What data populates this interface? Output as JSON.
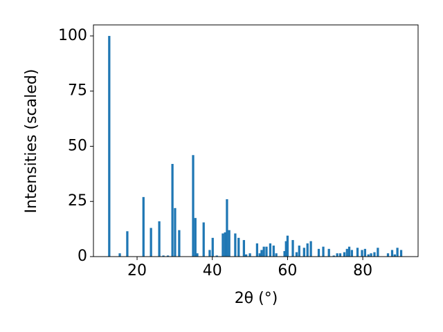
{
  "chart_data": {
    "type": "bar",
    "x_label": "2θ (°)",
    "y_label": "Intensities (scaled)",
    "color": "#1f77b4",
    "x": [
      12.6,
      15.4,
      17.4,
      21.7,
      23.7,
      25.9,
      27.0,
      28.2,
      29.4,
      30.1,
      31.2,
      34.9,
      35.5,
      36.0,
      37.7,
      39.3,
      40.1,
      41.2,
      42.8,
      43.4,
      43.9,
      44.5,
      46.1,
      47.0,
      48.4,
      49.0,
      50.0,
      51.9,
      52.6,
      53.1,
      53.7,
      54.4,
      55.4,
      56.3,
      57.0,
      59.2,
      59.6,
      60.0,
      61.4,
      62.4,
      63.1,
      64.4,
      65.3,
      66.2,
      68.3,
      69.5,
      71.0,
      72.3,
      73.2,
      74.0,
      75.1,
      75.8,
      76.4,
      77.1,
      78.6,
      79.8,
      80.6,
      81.5,
      82.2,
      83.1,
      84.0,
      86.7,
      87.8,
      88.5,
      89.2,
      90.2
    ],
    "values": [
      100,
      1.5,
      11.5,
      27,
      13,
      16,
      0.5,
      0.5,
      42,
      22,
      12,
      46,
      17.5,
      1.5,
      15.5,
      3,
      8.5,
      0.5,
      10.5,
      11,
      26,
      12,
      10.5,
      8.5,
      7.5,
      1,
      1.5,
      6,
      1.5,
      3,
      4.5,
      4.5,
      6,
      5,
      1.5,
      2.5,
      7,
      9.5,
      7.5,
      2,
      5,
      4,
      6,
      7,
      3.5,
      4.5,
      3.5,
      0.5,
      1.5,
      1.5,
      2,
      3.5,
      4.5,
      3,
      4,
      3,
      3.5,
      1,
      1.5,
      2,
      4,
      1.5,
      3,
      1,
      4,
      3
    ],
    "xlim": [
      8.4,
      94.7
    ],
    "ylim": [
      0,
      105
    ],
    "xticks": [
      20,
      40,
      60,
      80
    ],
    "yticks": [
      0,
      25,
      50,
      75,
      100
    ]
  }
}
